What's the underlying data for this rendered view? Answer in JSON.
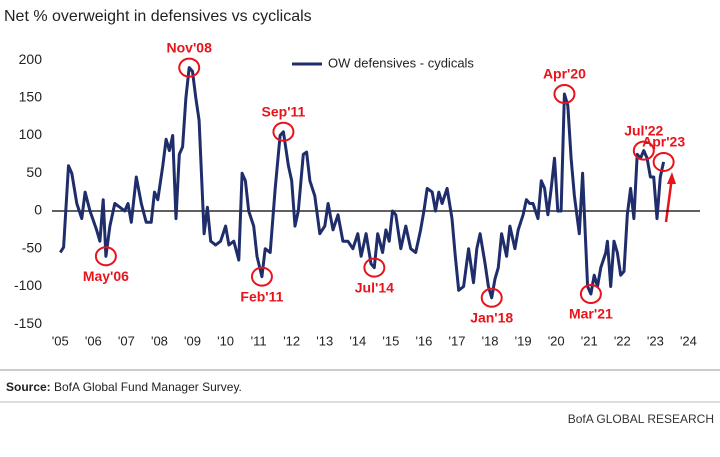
{
  "chart_data": {
    "type": "line",
    "title": "Net % overweight in defensives vs cyclicals",
    "x": [
      2005.0,
      2005.1,
      2005.25,
      2005.35,
      2005.5,
      2005.65,
      2005.75,
      2005.9,
      2006.1,
      2006.2,
      2006.3,
      2006.38,
      2006.5,
      2006.65,
      2006.8,
      2006.95,
      2007.05,
      2007.15,
      2007.3,
      2007.45,
      2007.6,
      2007.75,
      2007.85,
      2007.95,
      2008.1,
      2008.2,
      2008.3,
      2008.4,
      2008.5,
      2008.6,
      2008.7,
      2008.8,
      2008.9,
      2009.0,
      2009.1,
      2009.2,
      2009.35,
      2009.45,
      2009.55,
      2009.7,
      2009.85,
      2010.0,
      2010.1,
      2010.25,
      2010.4,
      2010.5,
      2010.6,
      2010.7,
      2010.85,
      2010.95,
      2011.1,
      2011.2,
      2011.35,
      2011.5,
      2011.65,
      2011.75,
      2011.9,
      2012.0,
      2012.1,
      2012.2,
      2012.35,
      2012.45,
      2012.55,
      2012.7,
      2012.85,
      2013.0,
      2013.1,
      2013.25,
      2013.4,
      2013.55,
      2013.7,
      2013.85,
      2014.0,
      2014.1,
      2014.25,
      2014.4,
      2014.5,
      2014.6,
      2014.75,
      2014.85,
      2014.95,
      2015.05,
      2015.15,
      2015.3,
      2015.45,
      2015.6,
      2015.75,
      2015.9,
      2016.0,
      2016.1,
      2016.25,
      2016.35,
      2016.45,
      2016.55,
      2016.7,
      2016.85,
      2016.95,
      2017.05,
      2017.2,
      2017.35,
      2017.5,
      2017.6,
      2017.7,
      2017.85,
      2017.95,
      2018.05,
      2018.15,
      2018.25,
      2018.35,
      2018.5,
      2018.6,
      2018.75,
      2018.85,
      2019.0,
      2019.1,
      2019.2,
      2019.3,
      2019.45,
      2019.55,
      2019.65,
      2019.75,
      2019.85,
      2019.95,
      2020.05,
      2020.15,
      2020.25,
      2020.35,
      2020.45,
      2020.55,
      2020.7,
      2020.8,
      2020.95,
      2021.05,
      2021.15,
      2021.25,
      2021.35,
      2021.5,
      2021.55,
      2021.65,
      2021.75,
      2021.85,
      2021.95,
      2022.05,
      2022.15,
      2022.25,
      2022.35,
      2022.45,
      2022.55,
      2022.65,
      2022.75,
      2022.85,
      2022.95,
      2023.05,
      2023.15,
      2023.25
    ],
    "series": [
      {
        "name": "OW defensives - cydicals",
        "color": "#1f2d6b",
        "values": [
          -55,
          -48,
          60,
          50,
          10,
          -10,
          25,
          0,
          -25,
          -40,
          15,
          -60,
          -20,
          10,
          5,
          0,
          10,
          -15,
          45,
          10,
          -15,
          -15,
          25,
          15,
          60,
          95,
          80,
          100,
          -10,
          75,
          85,
          150,
          190,
          185,
          150,
          120,
          -30,
          5,
          -40,
          -45,
          -40,
          -20,
          -45,
          -40,
          -65,
          50,
          40,
          0,
          -20,
          -60,
          -87,
          -50,
          -55,
          30,
          100,
          105,
          60,
          40,
          -20,
          0,
          75,
          78,
          40,
          20,
          -30,
          -20,
          10,
          -25,
          -5,
          -40,
          -40,
          -50,
          -30,
          -60,
          -30,
          -70,
          -75,
          -30,
          -55,
          -25,
          -40,
          0,
          -5,
          -50,
          -20,
          -50,
          -55,
          -25,
          0,
          30,
          25,
          0,
          25,
          10,
          30,
          -10,
          -60,
          -105,
          -100,
          -50,
          -95,
          -50,
          -30,
          -70,
          -100,
          -115,
          -90,
          -75,
          -30,
          -60,
          -20,
          -50,
          -25,
          -5,
          15,
          10,
          10,
          -10,
          40,
          30,
          -5,
          30,
          70,
          0,
          0,
          155,
          140,
          70,
          20,
          -30,
          50,
          -100,
          -110,
          -85,
          -100,
          -75,
          -55,
          -40,
          -100,
          -40,
          -55,
          -85,
          -80,
          -5,
          30,
          -10,
          75,
          70,
          80,
          70,
          45,
          45,
          -10,
          45,
          65
        ]
      }
    ],
    "xlim": [
      2004.75,
      2024.35
    ],
    "xticks": [
      {
        "value": 2005,
        "label": "'05"
      },
      {
        "value": 2006,
        "label": "'06"
      },
      {
        "value": 2007,
        "label": "'07"
      },
      {
        "value": 2008,
        "label": "'08"
      },
      {
        "value": 2009,
        "label": "'09"
      },
      {
        "value": 2010,
        "label": "'10"
      },
      {
        "value": 2011,
        "label": "'11"
      },
      {
        "value": 2012,
        "label": "'12"
      },
      {
        "value": 2013,
        "label": "'13"
      },
      {
        "value": 2014,
        "label": "'14"
      },
      {
        "value": 2015,
        "label": "'15"
      },
      {
        "value": 2016,
        "label": "'16"
      },
      {
        "value": 2017,
        "label": "'17"
      },
      {
        "value": 2018,
        "label": "'18"
      },
      {
        "value": 2019,
        "label": "'19"
      },
      {
        "value": 2020,
        "label": "'20"
      },
      {
        "value": 2021,
        "label": "'21"
      },
      {
        "value": 2022,
        "label": "'22"
      },
      {
        "value": 2023,
        "label": "'23"
      },
      {
        "value": 2024,
        "label": "'24"
      }
    ],
    "ylim": [
      -155,
      210
    ],
    "yticks": [
      -150,
      -100,
      -50,
      0,
      50,
      100,
      150,
      200
    ],
    "annotations": [
      {
        "text": "May'06",
        "x": 2006.38,
        "y": -60
      },
      {
        "text": "Nov'08",
        "x": 2008.9,
        "y": 190
      },
      {
        "text": "Feb'11",
        "x": 2011.1,
        "y": -87
      },
      {
        "text": "Sep'11",
        "x": 2011.75,
        "y": 105
      },
      {
        "text": "Jul'14",
        "x": 2014.5,
        "y": -75
      },
      {
        "text": "Jan'18",
        "x": 2018.05,
        "y": -115
      },
      {
        "text": "Apr'20",
        "x": 2020.25,
        "y": 155
      },
      {
        "text": "Mar'21",
        "x": 2021.05,
        "y": -110
      },
      {
        "text": "Jul'22",
        "x": 2022.65,
        "y": 80
      },
      {
        "text": "Apr'23",
        "x": 2023.25,
        "y": 65
      }
    ],
    "source_label": "Source:",
    "source_text": "BofA Global Fund Manager Survey.",
    "footer": "BofA GLOBAL RESEARCH"
  }
}
